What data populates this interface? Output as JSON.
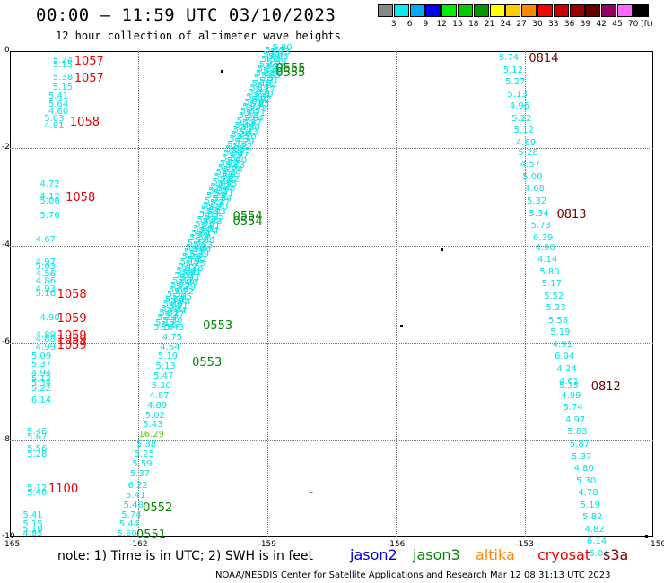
{
  "header": {
    "title": "00:00 — 11:59 UTC 03/10/2023",
    "subtitle": "12 hour collection of altimeter wave heights"
  },
  "colorbar": {
    "colors": [
      "#888888",
      "#00eeee",
      "#00aaff",
      "#0000ff",
      "#00ee00",
      "#00cc00",
      "#009900",
      "#ffff00",
      "#ffcc00",
      "#ff8800",
      "#ff0000",
      "#cc0000",
      "#990000",
      "#660000",
      "#990066",
      "#ff66ff",
      "#000000"
    ],
    "labels": [
      "3",
      "6",
      "9",
      "12",
      "15",
      "18",
      "21",
      "24",
      "27",
      "30",
      "33",
      "36",
      "39",
      "42",
      "45",
      "70 (ft)"
    ]
  },
  "axes": {
    "y_ticks": [
      "0",
      "-2",
      "-4",
      "-6",
      "-8",
      "-10"
    ],
    "x_ticks": [
      "-165",
      "-162",
      "-159",
      "-156",
      "-153",
      "-150"
    ]
  },
  "tracks": {
    "left_values": [
      {
        "t": "5.24",
        "lon": -164.0,
        "lat": -0.2
      },
      {
        "t": "5.15",
        "lon": -164.0,
        "lat": -0.3
      },
      {
        "t": "5.38",
        "lon": -164.0,
        "lat": -0.55
      },
      {
        "t": "5.15",
        "lon": -164.0,
        "lat": -0.75
      },
      {
        "t": "5.41",
        "lon": -164.1,
        "lat": -0.95
      },
      {
        "t": "5.64",
        "lon": -164.1,
        "lat": -1.1
      },
      {
        "t": "4.60",
        "lon": -164.1,
        "lat": -1.25
      },
      {
        "t": "5.03",
        "lon": -164.2,
        "lat": -1.4
      },
      {
        "t": "4.81",
        "lon": -164.2,
        "lat": -1.55
      },
      {
        "t": "4.72",
        "lon": -164.3,
        "lat": -2.75
      },
      {
        "t": "4.12",
        "lon": -164.3,
        "lat": -3.0
      },
      {
        "t": "5.06",
        "lon": -164.3,
        "lat": -3.1
      },
      {
        "t": "5.76",
        "lon": -164.3,
        "lat": -3.4
      },
      {
        "t": "4.67",
        "lon": -164.4,
        "lat": -3.9
      },
      {
        "t": "4.97",
        "lon": -164.4,
        "lat": -4.35
      },
      {
        "t": "5.03",
        "lon": -164.4,
        "lat": -4.45
      },
      {
        "t": "4.56",
        "lon": -164.4,
        "lat": -4.6
      },
      {
        "t": "4.86",
        "lon": -164.4,
        "lat": -4.75
      },
      {
        "t": "4.93",
        "lon": -164.4,
        "lat": -4.9
      },
      {
        "t": "5.16",
        "lon": -164.4,
        "lat": -5.0
      },
      {
        "t": "4.90",
        "lon": -164.3,
        "lat": -5.5
      },
      {
        "t": "4.89",
        "lon": -164.4,
        "lat": -5.85
      },
      {
        "t": "4.88",
        "lon": -164.4,
        "lat": -5.95
      },
      {
        "t": "4.99",
        "lon": -164.4,
        "lat": -6.1
      },
      {
        "t": "5.09",
        "lon": -164.5,
        "lat": -6.3
      },
      {
        "t": "5.37",
        "lon": -164.5,
        "lat": -6.45
      },
      {
        "t": "4.94",
        "lon": -164.5,
        "lat": -6.65
      },
      {
        "t": "5.12",
        "lon": -164.5,
        "lat": -6.75
      },
      {
        "t": "5.34",
        "lon": -164.5,
        "lat": -6.85
      },
      {
        "t": "5.22",
        "lon": -164.5,
        "lat": -6.95
      },
      {
        "t": "6.14",
        "lon": -164.5,
        "lat": -7.2
      },
      {
        "t": "5.46",
        "lon": -164.6,
        "lat": -7.85
      },
      {
        "t": "5.67",
        "lon": -164.6,
        "lat": -7.95
      },
      {
        "t": "5.56",
        "lon": -164.6,
        "lat": -8.2
      },
      {
        "t": "5.28",
        "lon": -164.6,
        "lat": -8.3
      },
      {
        "t": "5.12",
        "lon": -164.6,
        "lat": -9.0
      },
      {
        "t": "5.40",
        "lon": -164.6,
        "lat": -9.1
      },
      {
        "t": "5.41",
        "lon": -164.7,
        "lat": -9.55
      },
      {
        "t": "5.15",
        "lon": -164.7,
        "lat": -9.75
      },
      {
        "t": "5.10",
        "lon": -164.7,
        "lat": -9.85
      },
      {
        "t": "4.85",
        "lon": -164.7,
        "lat": -9.95
      }
    ],
    "right_values": [
      {
        "t": "5.74",
        "lon": -153.6,
        "lat": -0.15
      },
      {
        "t": "5.12",
        "lon": -153.5,
        "lat": -0.4
      },
      {
        "t": "5.27",
        "lon": -153.45,
        "lat": -0.65
      },
      {
        "t": "5.13",
        "lon": -153.4,
        "lat": -0.9
      },
      {
        "t": "4.96",
        "lon": -153.35,
        "lat": -1.15
      },
      {
        "t": "5.22",
        "lon": -153.3,
        "lat": -1.4
      },
      {
        "t": "5.12",
        "lon": -153.25,
        "lat": -1.65
      },
      {
        "t": "4.69",
        "lon": -153.2,
        "lat": -1.9
      },
      {
        "t": "5.28",
        "lon": -153.15,
        "lat": -2.1
      },
      {
        "t": "4.57",
        "lon": -153.1,
        "lat": -2.35
      },
      {
        "t": "5.00",
        "lon": -153.05,
        "lat": -2.6
      },
      {
        "t": "4.68",
        "lon": -153.0,
        "lat": -2.85
      },
      {
        "t": "5.32",
        "lon": -152.95,
        "lat": -3.1
      },
      {
        "t": "5.34",
        "lon": -152.9,
        "lat": -3.35
      },
      {
        "t": "5.73",
        "lon": -152.85,
        "lat": -3.6
      },
      {
        "t": "6.39",
        "lon": -152.8,
        "lat": -3.85
      },
      {
        "t": "4.90",
        "lon": -152.75,
        "lat": -4.05
      },
      {
        "t": "4.14",
        "lon": -152.7,
        "lat": -4.3
      },
      {
        "t": "5.80",
        "lon": -152.65,
        "lat": -4.55
      },
      {
        "t": "5.17",
        "lon": -152.6,
        "lat": -4.8
      },
      {
        "t": "5.52",
        "lon": -152.55,
        "lat": -5.05
      },
      {
        "t": "5.23",
        "lon": -152.5,
        "lat": -5.3
      },
      {
        "t": "5.58",
        "lon": -152.45,
        "lat": -5.55
      },
      {
        "t": "5.19",
        "lon": -152.4,
        "lat": -5.8
      },
      {
        "t": "4.91",
        "lon": -152.35,
        "lat": -6.05
      },
      {
        "t": "6.04",
        "lon": -152.3,
        "lat": -6.3
      },
      {
        "t": "4.24",
        "lon": -152.25,
        "lat": -6.55
      },
      {
        "t": "4.61",
        "lon": -152.2,
        "lat": -6.8
      },
      {
        "t": "5.35",
        "lon": -152.2,
        "lat": -6.9
      },
      {
        "t": "4.99",
        "lon": -152.15,
        "lat": -7.1
      },
      {
        "t": "5.74",
        "lon": -152.1,
        "lat": -7.35
      },
      {
        "t": "4.97",
        "lon": -152.05,
        "lat": -7.6
      },
      {
        "t": "5.83",
        "lon": -152.0,
        "lat": -7.85
      },
      {
        "t": "5.87",
        "lon": -151.95,
        "lat": -8.1
      },
      {
        "t": "5.37",
        "lon": -151.9,
        "lat": -8.35
      },
      {
        "t": "4.80",
        "lon": -151.85,
        "lat": -8.6
      },
      {
        "t": "5.30",
        "lon": -151.8,
        "lat": -8.85
      },
      {
        "t": "4.78",
        "lon": -151.75,
        "lat": -9.1
      },
      {
        "t": "5.19",
        "lon": -151.7,
        "lat": -9.35
      },
      {
        "t": "5.82",
        "lon": -151.65,
        "lat": -9.6
      },
      {
        "t": "4.82",
        "lon": -151.6,
        "lat": -9.85
      },
      {
        "t": "6.14",
        "lon": -151.55,
        "lat": -10.1
      },
      {
        "t": "6.04",
        "lon": -151.5,
        "lat": -10.35
      }
    ],
    "diag_values": [
      {
        "t": "5.60",
        "lon": -162.5,
        "lat": -9.95
      },
      {
        "t": "5.44",
        "lon": -162.45,
        "lat": -9.75
      },
      {
        "t": "5.74",
        "lon": -162.4,
        "lat": -9.55
      },
      {
        "t": "5.48",
        "lon": -162.35,
        "lat": -9.35
      },
      {
        "t": "5.41",
        "lon": -162.3,
        "lat": -9.15
      },
      {
        "t": "6.22",
        "lon": -162.25,
        "lat": -8.95
      },
      {
        "t": "5.37",
        "lon": -162.2,
        "lat": -8.7
      },
      {
        "t": "5.59",
        "lon": -162.15,
        "lat": -8.5
      },
      {
        "t": "5.25",
        "lon": -162.1,
        "lat": -8.3
      },
      {
        "t": "5.38",
        "lon": -162.05,
        "lat": -8.1
      },
      {
        "t": "16.29",
        "lon": -162.0,
        "lat": -7.9
      },
      {
        "t": "5.43",
        "lon": -161.9,
        "lat": -7.7
      },
      {
        "t": "5.02",
        "lon": -161.85,
        "lat": -7.5
      },
      {
        "t": "4.89",
        "lon": -161.8,
        "lat": -7.3
      },
      {
        "t": "4.87",
        "lon": -161.75,
        "lat": -7.1
      },
      {
        "t": "5.20",
        "lon": -161.7,
        "lat": -6.9
      },
      {
        "t": "5.47",
        "lon": -161.65,
        "lat": -6.7
      },
      {
        "t": "5.13",
        "lon": -161.6,
        "lat": -6.5
      },
      {
        "t": "5.19",
        "lon": -161.55,
        "lat": -6.3
      },
      {
        "t": "4.64",
        "lon": -161.5,
        "lat": -6.1
      },
      {
        "t": "4.75",
        "lon": -161.45,
        "lat": -5.9
      },
      {
        "t": "5.43",
        "lon": -161.4,
        "lat": -5.7
      }
    ]
  },
  "time_labels": [
    {
      "t": "1057",
      "lon": -163.5,
      "lat": -0.2,
      "c": "red"
    },
    {
      "t": "1057",
      "lon": -163.5,
      "lat": -0.55,
      "c": "red"
    },
    {
      "t": "1058",
      "lon": -163.6,
      "lat": -1.45,
      "c": "red"
    },
    {
      "t": "1058",
      "lon": -163.7,
      "lat": -3.0,
      "c": "red"
    },
    {
      "t": "1058",
      "lon": -163.9,
      "lat": -5.0,
      "c": "red"
    },
    {
      "t": "1059",
      "lon": -163.9,
      "lat": -5.5,
      "c": "red"
    },
    {
      "t": "1059",
      "lon": -163.9,
      "lat": -5.85,
      "c": "red"
    },
    {
      "t": "1059",
      "lon": -163.9,
      "lat": -5.95,
      "c": "red"
    },
    {
      "t": "1059",
      "lon": -163.9,
      "lat": -6.05,
      "c": "red"
    },
    {
      "t": "1100",
      "lon": -164.1,
      "lat": -9.0,
      "c": "red"
    },
    {
      "t": "0555",
      "lon": -158.8,
      "lat": -0.35,
      "c": "green"
    },
    {
      "t": "0555",
      "lon": -158.8,
      "lat": -0.45,
      "c": "green"
    },
    {
      "t": "0554",
      "lon": -159.8,
      "lat": -3.4,
      "c": "green"
    },
    {
      "t": "0554",
      "lon": -159.8,
      "lat": -3.5,
      "c": "green"
    },
    {
      "t": "0553",
      "lon": -160.5,
      "lat": -5.65,
      "c": "green"
    },
    {
      "t": "0553",
      "lon": -160.75,
      "lat": -6.4,
      "c": "green"
    },
    {
      "t": "0552",
      "lon": -161.9,
      "lat": -9.4,
      "c": "green"
    },
    {
      "t": "0551",
      "lon": -162.05,
      "lat": -9.95,
      "c": "green"
    },
    {
      "t": "0814",
      "lon": -152.9,
      "lat": -0.15,
      "c": "dark"
    },
    {
      "t": "0813",
      "lon": -152.25,
      "lat": -3.35,
      "c": "dark"
    },
    {
      "t": "0812",
      "lon": -151.45,
      "lat": -6.9,
      "c": "dark"
    }
  ],
  "footer": {
    "note": "note: 1) Time is in UTC; 2) SWH is in feet",
    "satellites": [
      {
        "name": "jason2",
        "color": "#0000dd"
      },
      {
        "name": "jason3",
        "color": "#008800"
      },
      {
        "name": "altika",
        "color": "#ff8800"
      },
      {
        "name": "cryosat",
        "color": "#ee0000"
      },
      {
        "name": "s3a",
        "color": "#7a0000"
      }
    ],
    "credit": "NOAA/NESDIS Center for Satellite Applications and Research   Mar 12 08:31:13 UTC 2023"
  }
}
